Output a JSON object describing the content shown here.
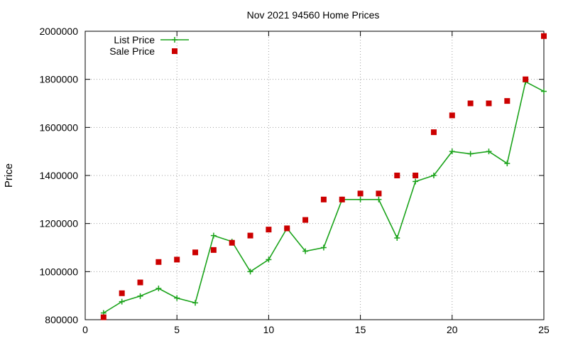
{
  "chart_data": {
    "type": "line",
    "title": "Nov 2021 94560 Home Prices",
    "xlabel": "",
    "ylabel": "Price",
    "xlim": [
      0,
      25
    ],
    "ylim": [
      800000,
      2000000
    ],
    "x_ticks": [
      0,
      5,
      10,
      15,
      20,
      25
    ],
    "x_tick_labels": [
      "0",
      "5",
      "10",
      "15",
      "20",
      "25"
    ],
    "y_ticks": [
      800000,
      1000000,
      1200000,
      1400000,
      1600000,
      1800000,
      2000000
    ],
    "y_tick_labels": [
      "800000",
      "1000000",
      "1200000",
      "1400000",
      "1600000",
      "1800000",
      "2000000"
    ],
    "grid": true,
    "legend_position": "top-left",
    "series": [
      {
        "name": "List Price",
        "style": "line-plus",
        "color": "#1aa31a",
        "x": [
          1,
          2,
          3,
          4,
          5,
          6,
          7,
          8,
          9,
          10,
          11,
          12,
          13,
          14,
          15,
          16,
          17,
          18,
          19,
          20,
          21,
          22,
          23,
          24,
          25
        ],
        "y": [
          828000,
          875000,
          898000,
          930000,
          890000,
          870000,
          1150000,
          1125000,
          1000000,
          1050000,
          1180000,
          1085000,
          1100000,
          1300000,
          1300000,
          1300000,
          1140000,
          1375000,
          1400000,
          1500000,
          1490000,
          1500000,
          1450000,
          1790000,
          1750000
        ]
      },
      {
        "name": "Sale Price",
        "style": "square",
        "color": "#cc0000",
        "x": [
          1,
          2,
          3,
          4,
          5,
          6,
          7,
          8,
          9,
          10,
          11,
          12,
          13,
          14,
          15,
          16,
          17,
          18,
          19,
          20,
          21,
          22,
          23,
          24,
          25
        ],
        "y": [
          810000,
          910000,
          955000,
          1040000,
          1050000,
          1080000,
          1090000,
          1120000,
          1150000,
          1175000,
          1180000,
          1215000,
          1300000,
          1300000,
          1325000,
          1325000,
          1400000,
          1400000,
          1580000,
          1650000,
          1700000,
          1700000,
          1710000,
          1800000,
          1980000
        ]
      }
    ]
  }
}
